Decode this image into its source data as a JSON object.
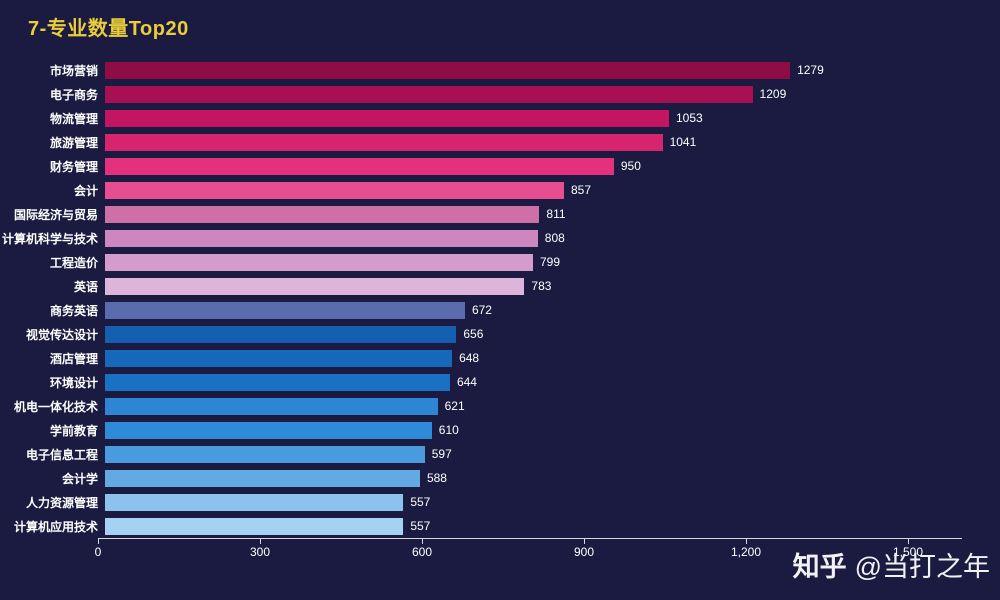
{
  "title": "7-专业数量Top20",
  "title_color": "#e9cd3a",
  "background_color": "#1b1b41",
  "watermark": {
    "brand": "知乎",
    "handle": "@当打之年"
  },
  "chart_data": {
    "type": "bar",
    "orientation": "horizontal",
    "title": "7-专业数量Top20",
    "categories": [
      "市场营销",
      "电子商务",
      "物流管理",
      "旅游管理",
      "财务管理",
      "会计",
      "国际经济与贸易",
      "计算机科学与技术",
      "工程造价",
      "英语",
      "商务英语",
      "视觉传达设计",
      "酒店管理",
      "环境设计",
      "机电一体化技术",
      "学前教育",
      "电子信息工程",
      "会计学",
      "人力资源管理",
      "计算机应用技术"
    ],
    "values": [
      1279,
      1209,
      1053,
      1041,
      950,
      857,
      811,
      808,
      799,
      783,
      672,
      656,
      648,
      644,
      621,
      610,
      597,
      588,
      557,
      557
    ],
    "value_labels": [
      "1279",
      "1209",
      "1053",
      "1041",
      "950",
      "857",
      "811",
      "808",
      "799",
      "783",
      "672",
      "656",
      "648",
      "644",
      "621",
      "610",
      "597",
      "588",
      "557",
      "557"
    ],
    "bar_colors": [
      "#8f0d45",
      "#a81054",
      "#c41562",
      "#d6246f",
      "#e4317d",
      "#e74e92",
      "#cf6fa8",
      "#cd86bf",
      "#d49ccd",
      "#dcb4dc",
      "#5b6cae",
      "#155fb0",
      "#1668bb",
      "#1a71c4",
      "#2e85d3",
      "#2f8ad8",
      "#4a9ade",
      "#63aae4",
      "#8cc3ed",
      "#a5d2f2"
    ],
    "xlim": [
      0,
      1500
    ],
    "x_ticks": [
      {
        "value": 0,
        "label": "0"
      },
      {
        "value": 300,
        "label": "300"
      },
      {
        "value": 600,
        "label": "600"
      },
      {
        "value": 900,
        "label": "900"
      },
      {
        "value": 1200,
        "label": "1,200"
      },
      {
        "value": 1500,
        "label": "1,500"
      }
    ],
    "grid": false,
    "legend": false
  }
}
